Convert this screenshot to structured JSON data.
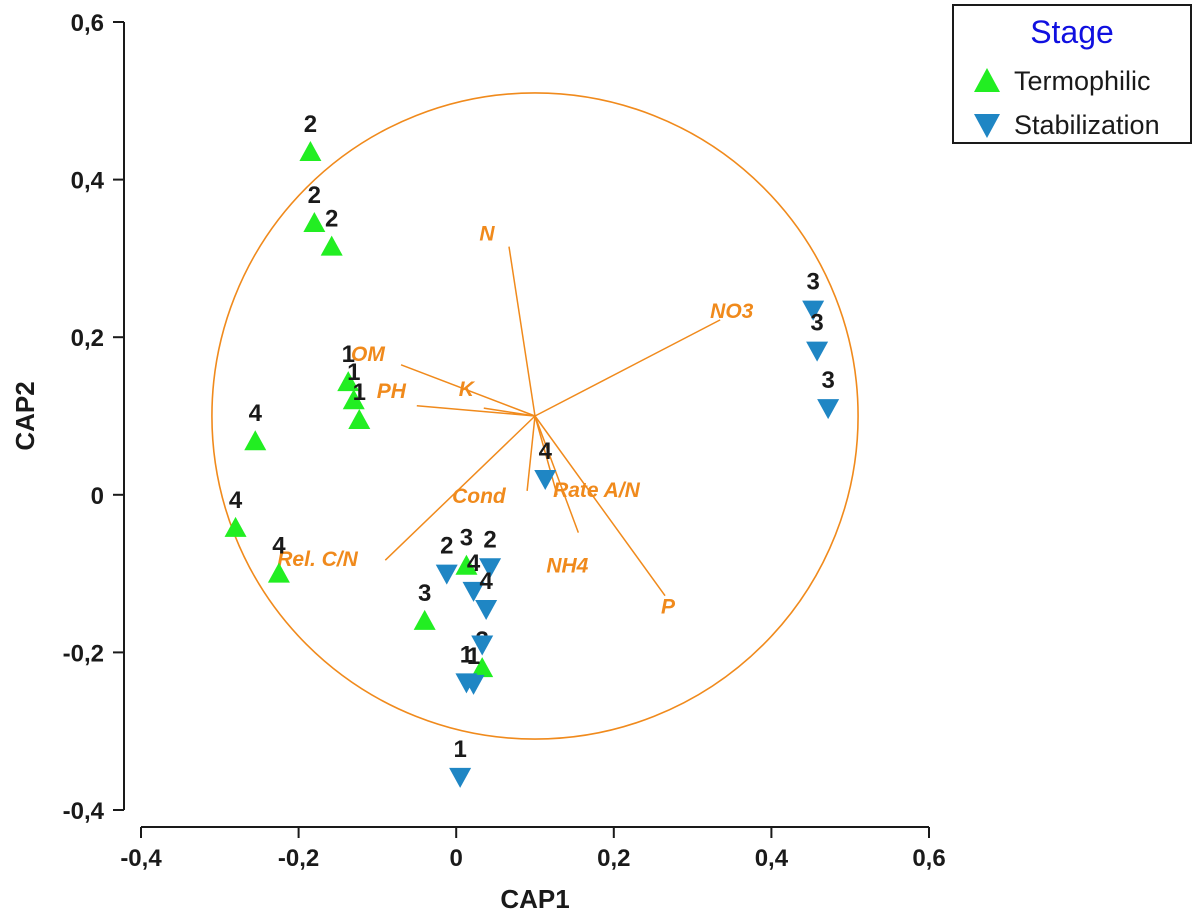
{
  "chart_data": {
    "type": "scatter",
    "xlabel": "CAP1",
    "ylabel": "CAP2",
    "xlim": [
      -0.4,
      0.6
    ],
    "ylim": [
      -0.4,
      0.6
    ],
    "xticks": [
      -0.4,
      -0.2,
      0,
      0.2,
      0.4,
      0.6
    ],
    "yticks": [
      -0.4,
      -0.2,
      0,
      0.2,
      0.4,
      0.6
    ],
    "xtick_labels": [
      "-0,4",
      "-0,2",
      "0",
      "0,2",
      "0,4",
      "0,6"
    ],
    "ytick_labels": [
      "-0,4",
      "-0,2",
      "0",
      "0,2",
      "0,4",
      "0,6"
    ],
    "legend": {
      "title": "Stage",
      "placement": "top-right outside"
    },
    "series": [
      {
        "name": "Termophilic",
        "marker": "triangle-up",
        "color": "#22ee22",
        "points": [
          {
            "x": -0.185,
            "y": 0.435,
            "label": "2"
          },
          {
            "x": -0.18,
            "y": 0.345,
            "label": "2"
          },
          {
            "x": -0.158,
            "y": 0.315,
            "label": "2"
          },
          {
            "x": -0.137,
            "y": 0.143,
            "label": "1"
          },
          {
            "x": -0.13,
            "y": 0.12,
            "label": "1"
          },
          {
            "x": -0.123,
            "y": 0.095,
            "label": "1"
          },
          {
            "x": -0.255,
            "y": 0.068,
            "label": "4"
          },
          {
            "x": -0.28,
            "y": -0.042,
            "label": "4"
          },
          {
            "x": -0.225,
            "y": -0.1,
            "label": "4"
          },
          {
            "x": -0.04,
            "y": -0.16,
            "label": "3"
          },
          {
            "x": 0.013,
            "y": -0.09,
            "label": "3"
          },
          {
            "x": 0.033,
            "y": -0.22,
            "label": "3"
          }
        ]
      },
      {
        "name": "Stabilization",
        "marker": "triangle-down",
        "color": "#1f86c4",
        "points": [
          {
            "x": 0.453,
            "y": 0.235,
            "label": "3"
          },
          {
            "x": 0.458,
            "y": 0.183,
            "label": "3"
          },
          {
            "x": 0.472,
            "y": 0.11,
            "label": "3"
          },
          {
            "x": 0.113,
            "y": 0.02,
            "label": "4"
          },
          {
            "x": -0.012,
            "y": -0.1,
            "label": "2"
          },
          {
            "x": 0.043,
            "y": -0.092,
            "label": "2"
          },
          {
            "x": 0.022,
            "y": -0.122,
            "label": "4"
          },
          {
            "x": 0.038,
            "y": -0.145,
            "label": "4"
          },
          {
            "x": 0.033,
            "y": -0.19,
            "label": ""
          },
          {
            "x": 0.013,
            "y": -0.238,
            "label": "1"
          },
          {
            "x": 0.022,
            "y": -0.24,
            "label": "1"
          },
          {
            "x": 0.005,
            "y": -0.358,
            "label": "1"
          }
        ]
      }
    ],
    "vectors": {
      "color": "#f08a1c",
      "origin": [
        0.1,
        0.1
      ],
      "circle_radius": 0.41,
      "items": [
        {
          "name": "N",
          "end": [
            0.067,
            0.315
          ]
        },
        {
          "name": "NO3",
          "end": [
            0.335,
            0.222
          ]
        },
        {
          "name": "OM",
          "end": [
            -0.07,
            0.165
          ]
        },
        {
          "name": "PH",
          "end": [
            -0.05,
            0.113
          ]
        },
        {
          "name": "K",
          "end": [
            0.035,
            0.11
          ]
        },
        {
          "name": "Rel. C/N",
          "end": [
            -0.09,
            -0.083
          ]
        },
        {
          "name": "Cond",
          "end": [
            0.09,
            0.005
          ]
        },
        {
          "name": "Rate A/N",
          "end": [
            0.128,
            0.0
          ]
        },
        {
          "name": "NH4",
          "end": [
            0.155,
            -0.048
          ]
        },
        {
          "name": "P",
          "end": [
            0.265,
            -0.128
          ]
        }
      ]
    }
  }
}
